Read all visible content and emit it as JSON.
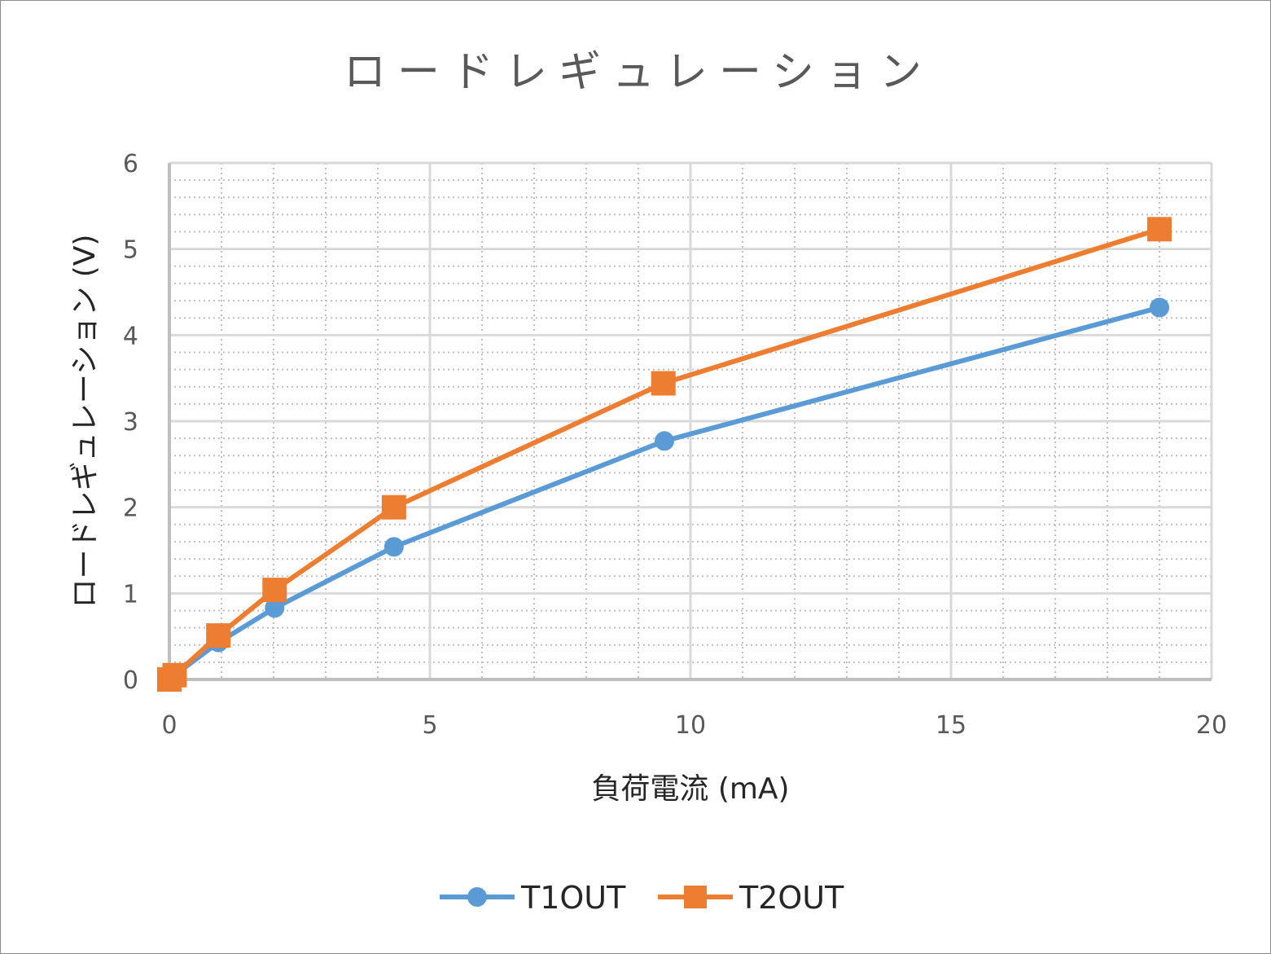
{
  "chart_data": {
    "type": "line",
    "title": "ロードレギュレーション",
    "xlabel": "負荷電流 (mA)",
    "ylabel": "ロードレギュレーション (V)",
    "xlim": [
      0,
      20
    ],
    "ylim": [
      0,
      6
    ],
    "xticks": [
      "0",
      "5",
      "10",
      "15",
      "20"
    ],
    "yticks": [
      "0",
      "1",
      "2",
      "3",
      "4",
      "5",
      "6"
    ],
    "grid": {
      "major": true,
      "minor": true
    },
    "legend": "bottom",
    "series": [
      {
        "name": "T1OUT",
        "color": "#5B9BD5",
        "marker": "circle",
        "x": [
          0,
          0.1,
          0.94,
          2.02,
          4.31,
          9.5,
          19.0
        ],
        "y": [
          0,
          0.05,
          0.43,
          0.83,
          1.54,
          2.77,
          4.32
        ]
      },
      {
        "name": "T2OUT",
        "color": "#ED7D31",
        "marker": "square",
        "x": [
          0,
          0.1,
          0.94,
          2.02,
          4.31,
          9.48,
          19.0
        ],
        "y": [
          0,
          0.05,
          0.51,
          1.04,
          2.0,
          3.44,
          5.23
        ]
      }
    ]
  }
}
